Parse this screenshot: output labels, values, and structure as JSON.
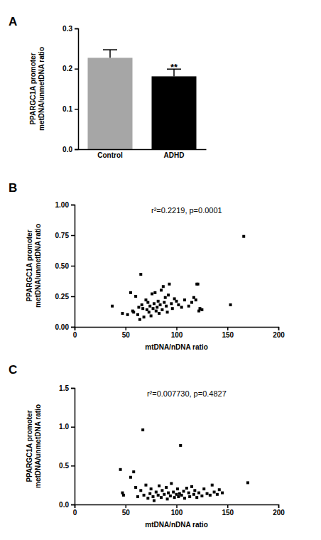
{
  "chart_data": [
    {
      "type": "bar",
      "title": "A",
      "categories": [
        "Control",
        "ADHD"
      ],
      "values": [
        0.227,
        0.181
      ],
      "errors": [
        0.02,
        0.018
      ],
      "colors": [
        "#a6a6a6",
        "#000000"
      ],
      "ylabel": [
        "PPARGC1A promoter",
        "metDNA/unmetDNA ratio"
      ],
      "ylim": [
        0,
        0.3
      ],
      "yticks": [
        {
          "value": 0,
          "label": "0.0"
        },
        0.1,
        0.2,
        0.3
      ],
      "annotations": [
        {
          "text": "**",
          "category": "ADHD"
        }
      ]
    },
    {
      "type": "scatter",
      "title": "B",
      "x": [
        37,
        47,
        52,
        55,
        57,
        58,
        60,
        62,
        63,
        64,
        65,
        66,
        67,
        68,
        70,
        71,
        72,
        73,
        74,
        75,
        76,
        77,
        78,
        79,
        80,
        81,
        82,
        83,
        84,
        85,
        86,
        87,
        88,
        89,
        90,
        91,
        92,
        93,
        95,
        96,
        98,
        100,
        102,
        105,
        108,
        112,
        115,
        117,
        119,
        120,
        121,
        122,
        123,
        125,
        153,
        166
      ],
      "values": [
        0.17,
        0.11,
        0.1,
        0.28,
        0.13,
        0.12,
        0.25,
        0.1,
        0.16,
        0.06,
        0.43,
        0.18,
        0.15,
        0.08,
        0.22,
        0.14,
        0.2,
        0.12,
        0.17,
        0.09,
        0.27,
        0.15,
        0.19,
        0.28,
        0.13,
        0.16,
        0.21,
        0.11,
        0.18,
        0.3,
        0.14,
        0.33,
        0.2,
        0.24,
        0.17,
        0.12,
        0.26,
        0.35,
        0.19,
        0.15,
        0.23,
        0.21,
        0.18,
        0.16,
        0.22,
        0.17,
        0.2,
        0.24,
        0.22,
        0.35,
        0.35,
        0.13,
        0.15,
        0.14,
        0.18,
        0.74
      ],
      "color": "#000000",
      "marker": "square",
      "xlabel": "mtDNA/nDNA ratio",
      "ylabel": [
        "PPARGC1A promoter",
        "metDNA/unmetDNA ratio"
      ],
      "xlim": [
        0,
        200
      ],
      "xticks": [
        0,
        50,
        100,
        150,
        200
      ],
      "ylim": [
        0,
        1
      ],
      "yticks": [
        {
          "value": 0,
          "label": "0.00"
        },
        {
          "value": 0.25,
          "label": "0.25"
        },
        {
          "value": 0.5,
          "label": "0.50"
        },
        {
          "value": 0.75,
          "label": "0.75"
        },
        {
          "value": 1,
          "label": "1.00"
        }
      ],
      "annotations": [
        {
          "text": "r²=0.2219, p=0.0001"
        }
      ]
    },
    {
      "type": "scatter",
      "title": "C",
      "x": [
        45,
        47,
        48,
        55,
        58,
        60,
        62,
        65,
        67,
        68,
        70,
        72,
        74,
        75,
        77,
        78,
        80,
        82,
        83,
        85,
        86,
        88,
        90,
        91,
        92,
        94,
        95,
        97,
        98,
        100,
        101,
        102,
        103,
        104,
        105,
        107,
        108,
        110,
        112,
        113,
        115,
        117,
        118,
        120,
        122,
        125,
        127,
        130,
        133,
        135,
        137,
        140,
        142,
        145,
        170
      ],
      "values": [
        0.45,
        0.15,
        0.12,
        0.35,
        0.42,
        0.22,
        0.1,
        0.18,
        0.96,
        0.12,
        0.25,
        0.08,
        0.14,
        0.2,
        0.1,
        0.05,
        0.16,
        0.12,
        0.24,
        0.09,
        0.18,
        0.13,
        0.22,
        0.07,
        0.15,
        0.11,
        0.27,
        0.16,
        0.09,
        0.13,
        0.2,
        0.1,
        0.14,
        0.76,
        0.12,
        0.17,
        0.08,
        0.21,
        0.15,
        0.1,
        0.23,
        0.13,
        0.18,
        0.09,
        0.15,
        0.11,
        0.2,
        0.14,
        0.12,
        0.25,
        0.16,
        0.13,
        0.19,
        0.15,
        0.28
      ],
      "color": "#000000",
      "marker": "square",
      "xlabel": "mtDNA/nDNA ratio",
      "ylabel": [
        "PPARGC1A promoter",
        "metDNA/unmetDNA ratio"
      ],
      "xlim": [
        0,
        200
      ],
      "xticks": [
        0,
        50,
        100,
        150,
        200
      ],
      "ylim": [
        0,
        1.5
      ],
      "yticks": [
        {
          "value": 0,
          "label": "0.0"
        },
        {
          "value": 0.5,
          "label": "0.5"
        },
        {
          "value": 1,
          "label": "1.0"
        },
        {
          "value": 1.5,
          "label": "1.5"
        }
      ],
      "annotations": [
        {
          "text": "r²=0.007730, p=0.4827"
        }
      ]
    }
  ]
}
